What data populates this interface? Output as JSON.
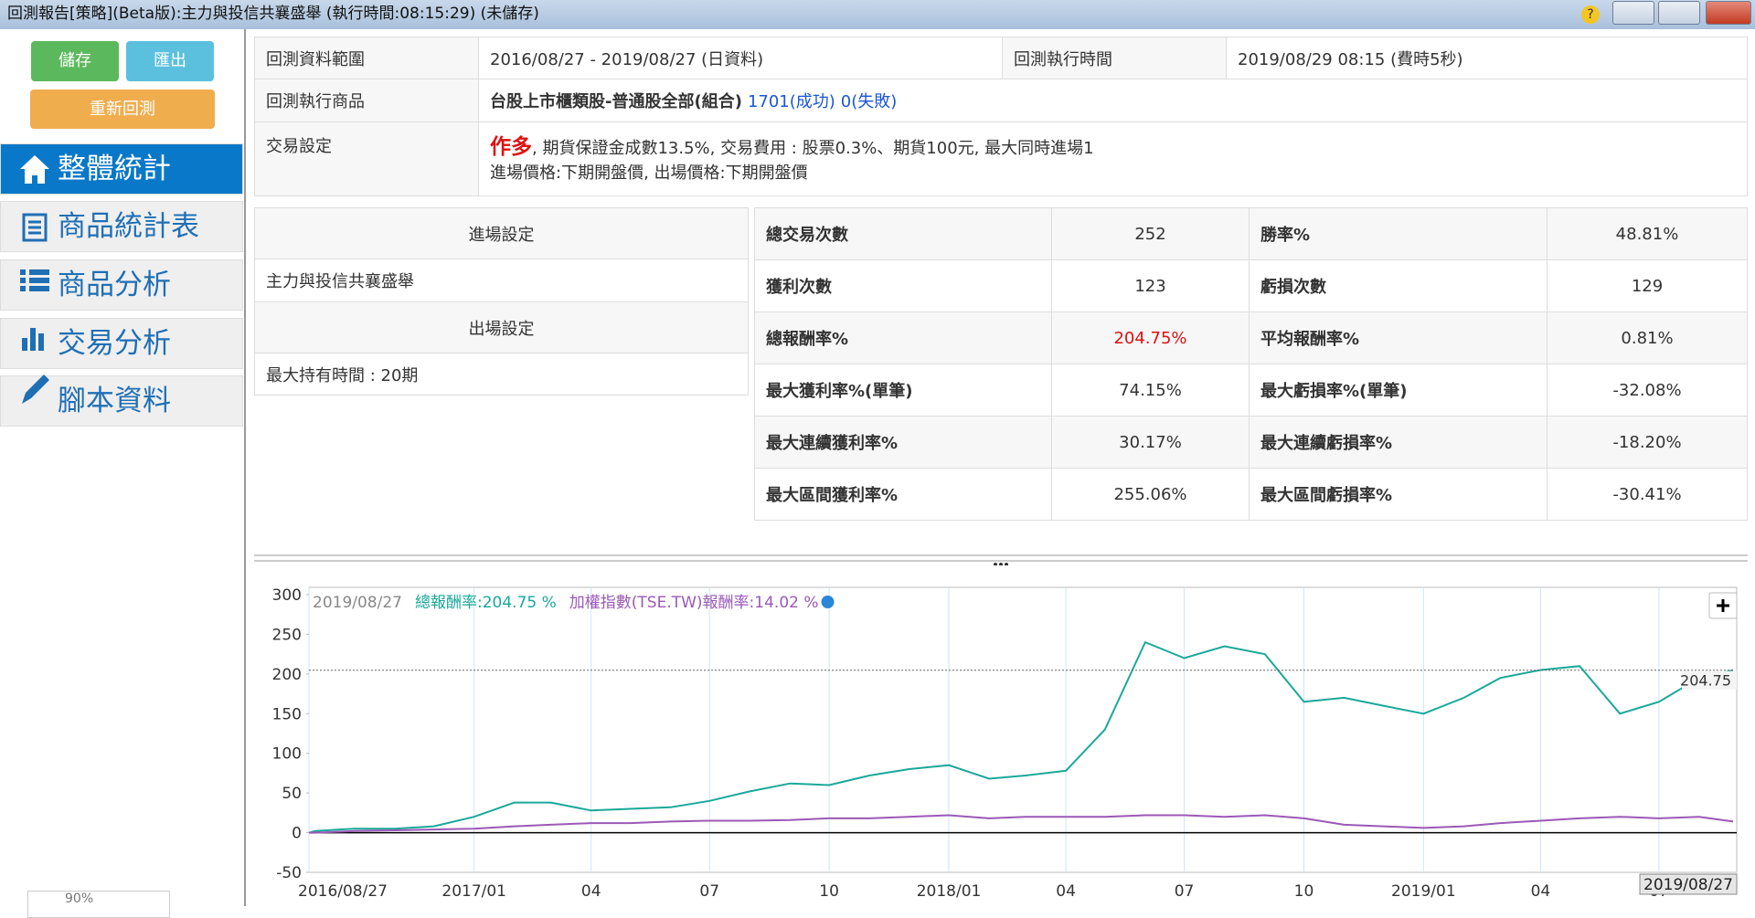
{
  "window": {
    "title": "回測報告[策略](Beta版):主力與投信共襄盛舉 (執行時間:08:15:29) (未儲存)"
  },
  "sidebar": {
    "buttons": [
      "儲存",
      "匯出",
      "重新回測"
    ],
    "nav": [
      "整體統計",
      "商品統計表",
      "商品分析",
      "交易分析",
      "腳本資料"
    ],
    "zoom": "90%"
  },
  "info": {
    "rows": [
      {
        "label": "回測資料範圍",
        "value": "2016/08/27 - 2019/08/27 (日資料)",
        "label2": "回測執行時間",
        "value2": "2019/08/29 08:15 (費時5秒)"
      },
      {
        "label": "回測執行商品",
        "value": "台股上市櫃類股-普通股全部(組合)",
        "success": "1701(成功)",
        "fail": "0(失敗)"
      },
      {
        "label": "交易設定",
        "direction": "作多",
        "line1": ", 期貨保證金成數13.5%, 交易費用 : 股票0.3%、期貨100元, 最大同時進場1",
        "line2": "進場價格:下期開盤價, 出場價格:下期開盤價"
      }
    ]
  },
  "settings": {
    "entry_header": "進場設定",
    "entry": "主力與投信共襄盛舉",
    "exit_header": "出場設定",
    "exit": "最大持有時間 : 20期"
  },
  "stats": {
    "rows": [
      [
        "總交易次數",
        "252",
        "勝率%",
        "48.81%"
      ],
      [
        "獲利次數",
        "123",
        "虧損次數",
        "129"
      ],
      [
        "總報酬率%",
        "204.75%",
        "平均報酬率%",
        "0.81%"
      ],
      [
        "最大獲利率%(單筆)",
        "74.15%",
        "最大虧損率%(單筆)",
        "-32.08%"
      ],
      [
        "最大連續獲利率%",
        "30.17%",
        "最大連續虧損率%",
        "-18.20%"
      ],
      [
        "最大區間獲利率%",
        "255.06%",
        "最大區間虧損率%",
        "-30.41%"
      ]
    ]
  },
  "chart_data": {
    "type": "line",
    "x": [
      "2016/08/27",
      "2016/09",
      "2016/10",
      "2016/11",
      "2016/12",
      "2017/01",
      "2017/02",
      "2017/03",
      "2017/04",
      "2017/05",
      "2017/06",
      "2017/07",
      "2017/08",
      "2017/09",
      "2017/10",
      "2017/11",
      "2017/12",
      "2018/01",
      "2018/02",
      "2018/03",
      "2018/04",
      "2018/05",
      "2018/06",
      "2018/07",
      "2018/08",
      "2018/09",
      "2018/10",
      "2018/11",
      "2018/12",
      "2019/01",
      "2019/02",
      "2019/03",
      "2019/04",
      "2019/05",
      "2019/06",
      "2019/07",
      "2019/08",
      "2019/08/27"
    ],
    "series": [
      {
        "name": "總報酬率:",
        "color": "#1aa89a",
        "values": [
          0,
          2,
          5,
          5,
          8,
          20,
          38,
          38,
          28,
          30,
          32,
          40,
          52,
          62,
          60,
          72,
          80,
          85,
          68,
          72,
          78,
          130,
          240,
          220,
          235,
          225,
          165,
          170,
          160,
          150,
          170,
          195,
          205,
          210,
          150,
          165,
          195,
          204.75
        ]
      },
      {
        "name": "加權指數(TSE.TW)報酬率:",
        "color": "#9b59b6",
        "values": [
          0,
          0,
          2,
          3,
          4,
          5,
          8,
          10,
          12,
          12,
          14,
          15,
          15,
          16,
          18,
          18,
          20,
          22,
          18,
          20,
          20,
          20,
          22,
          22,
          20,
          22,
          18,
          10,
          8,
          6,
          8,
          12,
          15,
          18,
          20,
          18,
          20,
          14.02
        ]
      }
    ],
    "hover": {
      "date": "2019/08/27",
      "values": [
        "204.75 %",
        "14.02 %"
      ]
    },
    "xlim": [
      "2016/08/27",
      "2019/08/27"
    ],
    "xticks": [
      "2016/08/27",
      "2017/01",
      {
        "value": "2017/04",
        "label": "04"
      },
      {
        "value": "2017/07",
        "label": "07"
      },
      {
        "value": "2017/10",
        "label": "10"
      },
      "2018/01",
      {
        "value": "2018/04",
        "label": "04"
      },
      {
        "value": "2018/07",
        "label": "07"
      },
      {
        "value": "2018/10",
        "label": "10"
      },
      "2019/01",
      {
        "value": "2019/04",
        "label": "04"
      },
      {
        "value": "2019/07",
        "label": "07"
      }
    ],
    "ylim": [
      -50,
      300
    ],
    "yticks": [
      -50,
      0,
      50,
      100,
      150,
      200,
      250,
      300
    ],
    "grid": true
  }
}
